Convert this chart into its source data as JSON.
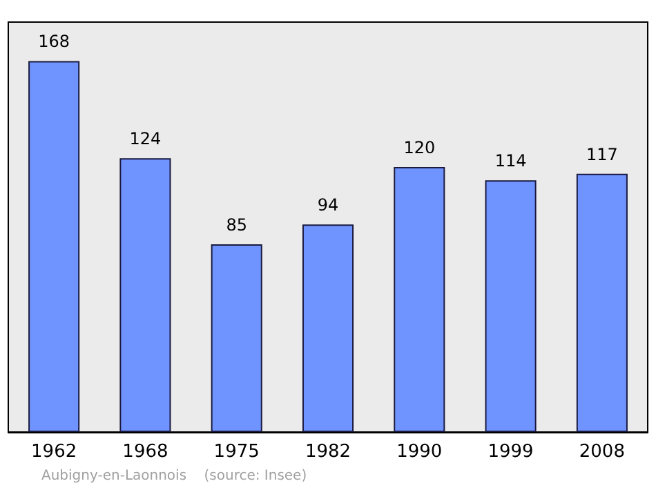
{
  "chart_data": {
    "type": "bar",
    "categories": [
      "1962",
      "1968",
      "1975",
      "1982",
      "1990",
      "1999",
      "2008"
    ],
    "values": [
      168,
      124,
      85,
      94,
      120,
      114,
      117
    ],
    "color": "#7094ff",
    "data_labels": true,
    "annotations": [
      "Aubigny-en-Laonnois    (source: Insee)"
    ]
  }
}
